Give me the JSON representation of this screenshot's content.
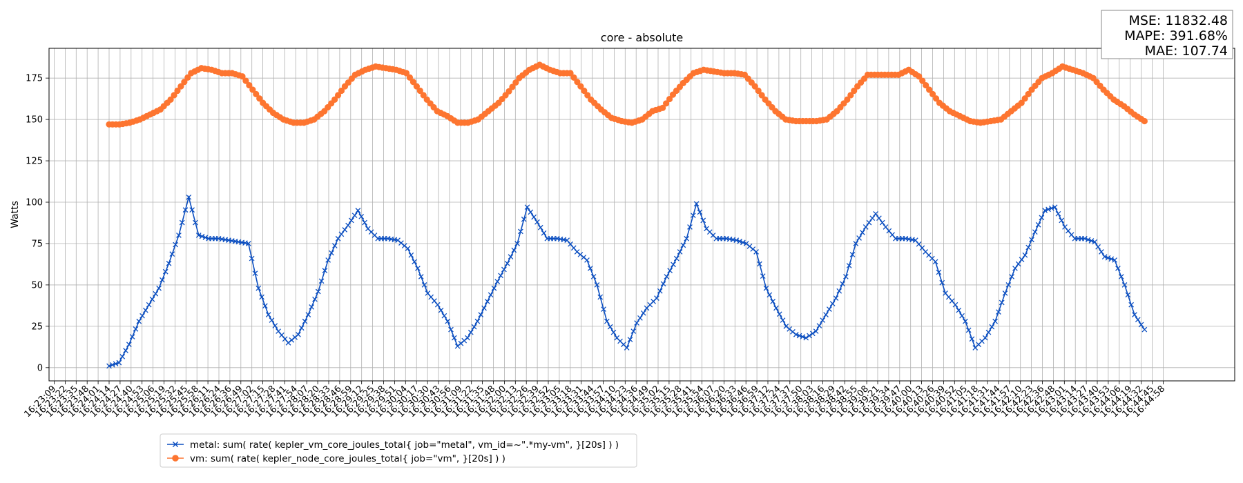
{
  "chart_data": {
    "type": "line",
    "title": "core - absolute",
    "ylabel": "Watts",
    "ylim": [
      -8,
      193
    ],
    "yticks": [
      0,
      25,
      50,
      75,
      100,
      125,
      150,
      175
    ],
    "grid": true,
    "legend_placement": "lower-left",
    "x_tick_labels": [
      "16:23:09",
      "16:23:22",
      "16:23:35",
      "16:23:48",
      "16:24:01",
      "16:24:14",
      "16:24:27",
      "16:24:40",
      "16:24:53",
      "16:25:06",
      "16:25:19",
      "16:25:32",
      "16:25:45",
      "16:25:58",
      "16:26:11",
      "16:26:24",
      "16:26:36",
      "16:26:49",
      "16:27:02",
      "16:27:15",
      "16:27:28",
      "16:27:41",
      "16:27:54",
      "16:28:07",
      "16:28:20",
      "16:28:33",
      "16:28:46",
      "16:28:59",
      "16:29:12",
      "16:29:25",
      "16:29:38",
      "16:29:51",
      "16:30:04",
      "16:30:17",
      "16:30:30",
      "16:30:43",
      "16:30:56",
      "16:31:09",
      "16:31:22",
      "16:31:35",
      "16:31:48",
      "16:32:00",
      "16:32:13",
      "16:32:26",
      "16:32:39",
      "16:32:52",
      "16:33:05",
      "16:33:18",
      "16:33:31",
      "16:33:44",
      "16:33:57",
      "16:34:10",
      "16:34:23",
      "16:34:36",
      "16:34:49",
      "16:35:02",
      "16:35:15",
      "16:35:28",
      "16:35:41",
      "16:35:54",
      "16:36:07",
      "16:36:20",
      "16:36:33",
      "16:36:46",
      "16:36:59",
      "16:37:12",
      "16:37:24",
      "16:37:37",
      "16:37:50",
      "16:38:03",
      "16:38:16",
      "16:38:29",
      "16:38:42",
      "16:38:55",
      "16:39:08",
      "16:39:21",
      "16:39:34",
      "16:39:47",
      "16:40:00",
      "16:40:13",
      "16:40:26",
      "16:40:39",
      "16:40:52",
      "16:41:05",
      "16:41:18",
      "16:41:31",
      "16:41:44",
      "16:41:57",
      "16:42:10",
      "16:42:23",
      "16:42:36",
      "16:42:48",
      "16:43:01",
      "16:43:14",
      "16:43:27",
      "16:43:40",
      "16:43:53",
      "16:44:06",
      "16:44:19",
      "16:44:32",
      "16:44:45",
      "16:44:58"
    ],
    "series": [
      {
        "name": "metal: sum( rate( kepler_vm_core_joules_total{ job=\"metal\", vm_id=~\".*my-vm\", }[20s] ) )",
        "color": "#0b4ec0",
        "marker": "x",
        "x_start_tick": 5,
        "x_end_tick": 99,
        "anchors": [
          [
            5,
            1
          ],
          [
            6,
            3
          ],
          [
            7,
            14
          ],
          [
            8,
            28
          ],
          [
            9,
            38
          ],
          [
            10,
            48
          ],
          [
            11,
            63
          ],
          [
            12,
            80
          ],
          [
            13,
            103
          ],
          [
            14,
            80
          ],
          [
            15,
            78
          ],
          [
            16,
            78
          ],
          [
            17,
            77
          ],
          [
            18,
            76
          ],
          [
            19,
            75
          ],
          [
            20,
            48
          ],
          [
            21,
            32
          ],
          [
            22,
            22
          ],
          [
            23,
            15
          ],
          [
            24,
            20
          ],
          [
            25,
            32
          ],
          [
            26,
            46
          ],
          [
            27,
            65
          ],
          [
            28,
            78
          ],
          [
            29,
            86
          ],
          [
            30,
            95
          ],
          [
            31,
            84
          ],
          [
            32,
            78
          ],
          [
            33,
            78
          ],
          [
            34,
            77
          ],
          [
            35,
            72
          ],
          [
            36,
            60
          ],
          [
            37,
            45
          ],
          [
            38,
            38
          ],
          [
            39,
            28
          ],
          [
            40,
            13
          ],
          [
            41,
            18
          ],
          [
            42,
            28
          ],
          [
            43,
            40
          ],
          [
            44,
            52
          ],
          [
            45,
            63
          ],
          [
            46,
            75
          ],
          [
            47,
            97
          ],
          [
            48,
            88
          ],
          [
            49,
            78
          ],
          [
            50,
            78
          ],
          [
            51,
            77
          ],
          [
            52,
            70
          ],
          [
            53,
            65
          ],
          [
            54,
            50
          ],
          [
            55,
            28
          ],
          [
            56,
            18
          ],
          [
            57,
            12
          ],
          [
            58,
            27
          ],
          [
            59,
            36
          ],
          [
            60,
            42
          ],
          [
            61,
            55
          ],
          [
            62,
            66
          ],
          [
            63,
            78
          ],
          [
            64,
            99
          ],
          [
            65,
            84
          ],
          [
            66,
            78
          ],
          [
            67,
            78
          ],
          [
            68,
            77
          ],
          [
            69,
            75
          ],
          [
            70,
            70
          ],
          [
            71,
            48
          ],
          [
            72,
            36
          ],
          [
            73,
            25
          ],
          [
            74,
            20
          ],
          [
            75,
            18
          ],
          [
            76,
            22
          ],
          [
            77,
            32
          ],
          [
            78,
            42
          ],
          [
            79,
            55
          ],
          [
            80,
            75
          ],
          [
            81,
            85
          ],
          [
            82,
            93
          ],
          [
            83,
            85
          ],
          [
            84,
            78
          ],
          [
            85,
            78
          ],
          [
            86,
            77
          ],
          [
            87,
            70
          ],
          [
            88,
            64
          ],
          [
            89,
            45
          ],
          [
            90,
            38
          ],
          [
            91,
            28
          ],
          [
            92,
            12
          ],
          [
            93,
            18
          ],
          [
            94,
            28
          ],
          [
            95,
            45
          ],
          [
            96,
            60
          ],
          [
            97,
            68
          ],
          [
            98,
            82
          ],
          [
            99,
            95
          ],
          [
            100,
            97
          ],
          [
            101,
            85
          ],
          [
            102,
            78
          ],
          [
            103,
            78
          ],
          [
            104,
            76
          ],
          [
            105,
            67
          ],
          [
            106,
            65
          ],
          [
            107,
            50
          ],
          [
            108,
            32
          ],
          [
            109,
            23
          ]
        ]
      },
      {
        "name": "vm: sum( rate( kepler_node_core_joules_total{ job=\"vm\", }[20s] ) )",
        "color": "#fd7530",
        "marker": "o",
        "x_start_tick": 5,
        "x_end_tick": 99,
        "anchors": [
          [
            5,
            147
          ],
          [
            6,
            147
          ],
          [
            7,
            148
          ],
          [
            8,
            150
          ],
          [
            9,
            153
          ],
          [
            10,
            156
          ],
          [
            11,
            162
          ],
          [
            12,
            170
          ],
          [
            13,
            178
          ],
          [
            14,
            181
          ],
          [
            15,
            180
          ],
          [
            16,
            178
          ],
          [
            17,
            178
          ],
          [
            18,
            176
          ],
          [
            19,
            168
          ],
          [
            20,
            160
          ],
          [
            21,
            154
          ],
          [
            22,
            150
          ],
          [
            23,
            148
          ],
          [
            24,
            148
          ],
          [
            25,
            150
          ],
          [
            26,
            155
          ],
          [
            27,
            162
          ],
          [
            28,
            170
          ],
          [
            29,
            177
          ],
          [
            30,
            180
          ],
          [
            31,
            182
          ],
          [
            32,
            181
          ],
          [
            33,
            180
          ],
          [
            34,
            178
          ],
          [
            35,
            170
          ],
          [
            36,
            162
          ],
          [
            37,
            155
          ],
          [
            38,
            152
          ],
          [
            39,
            148
          ],
          [
            40,
            148
          ],
          [
            41,
            150
          ],
          [
            42,
            155
          ],
          [
            43,
            160
          ],
          [
            44,
            167
          ],
          [
            45,
            175
          ],
          [
            46,
            180
          ],
          [
            47,
            183
          ],
          [
            48,
            180
          ],
          [
            49,
            178
          ],
          [
            50,
            178
          ],
          [
            51,
            170
          ],
          [
            52,
            162
          ],
          [
            53,
            156
          ],
          [
            54,
            151
          ],
          [
            55,
            149
          ],
          [
            56,
            148
          ],
          [
            57,
            150
          ],
          [
            58,
            155
          ],
          [
            59,
            157
          ],
          [
            60,
            165
          ],
          [
            61,
            172
          ],
          [
            62,
            178
          ],
          [
            63,
            180
          ],
          [
            64,
            179
          ],
          [
            65,
            178
          ],
          [
            66,
            178
          ],
          [
            67,
            177
          ],
          [
            68,
            170
          ],
          [
            69,
            162
          ],
          [
            70,
            155
          ],
          [
            71,
            150
          ],
          [
            72,
            149
          ],
          [
            73,
            149
          ],
          [
            74,
            149
          ],
          [
            75,
            150
          ],
          [
            76,
            155
          ],
          [
            77,
            162
          ],
          [
            78,
            170
          ],
          [
            79,
            177
          ],
          [
            80,
            177
          ],
          [
            81,
            177
          ],
          [
            82,
            177
          ],
          [
            83,
            180
          ],
          [
            84,
            176
          ],
          [
            85,
            168
          ],
          [
            86,
            160
          ],
          [
            87,
            155
          ],
          [
            88,
            152
          ],
          [
            89,
            149
          ],
          [
            90,
            148
          ],
          [
            91,
            149
          ],
          [
            92,
            150
          ],
          [
            93,
            155
          ],
          [
            94,
            160
          ],
          [
            95,
            168
          ],
          [
            96,
            175
          ],
          [
            97,
            178
          ],
          [
            98,
            182
          ],
          [
            99,
            180
          ],
          [
            100,
            178
          ],
          [
            101,
            175
          ],
          [
            102,
            168
          ],
          [
            103,
            162
          ],
          [
            104,
            158
          ],
          [
            105,
            153
          ],
          [
            106,
            149
          ]
        ]
      }
    ]
  },
  "stats_box": {
    "lines": [
      "MSE: 11832.48",
      "MAPE: 391.68%",
      "MAE: 107.74"
    ]
  }
}
